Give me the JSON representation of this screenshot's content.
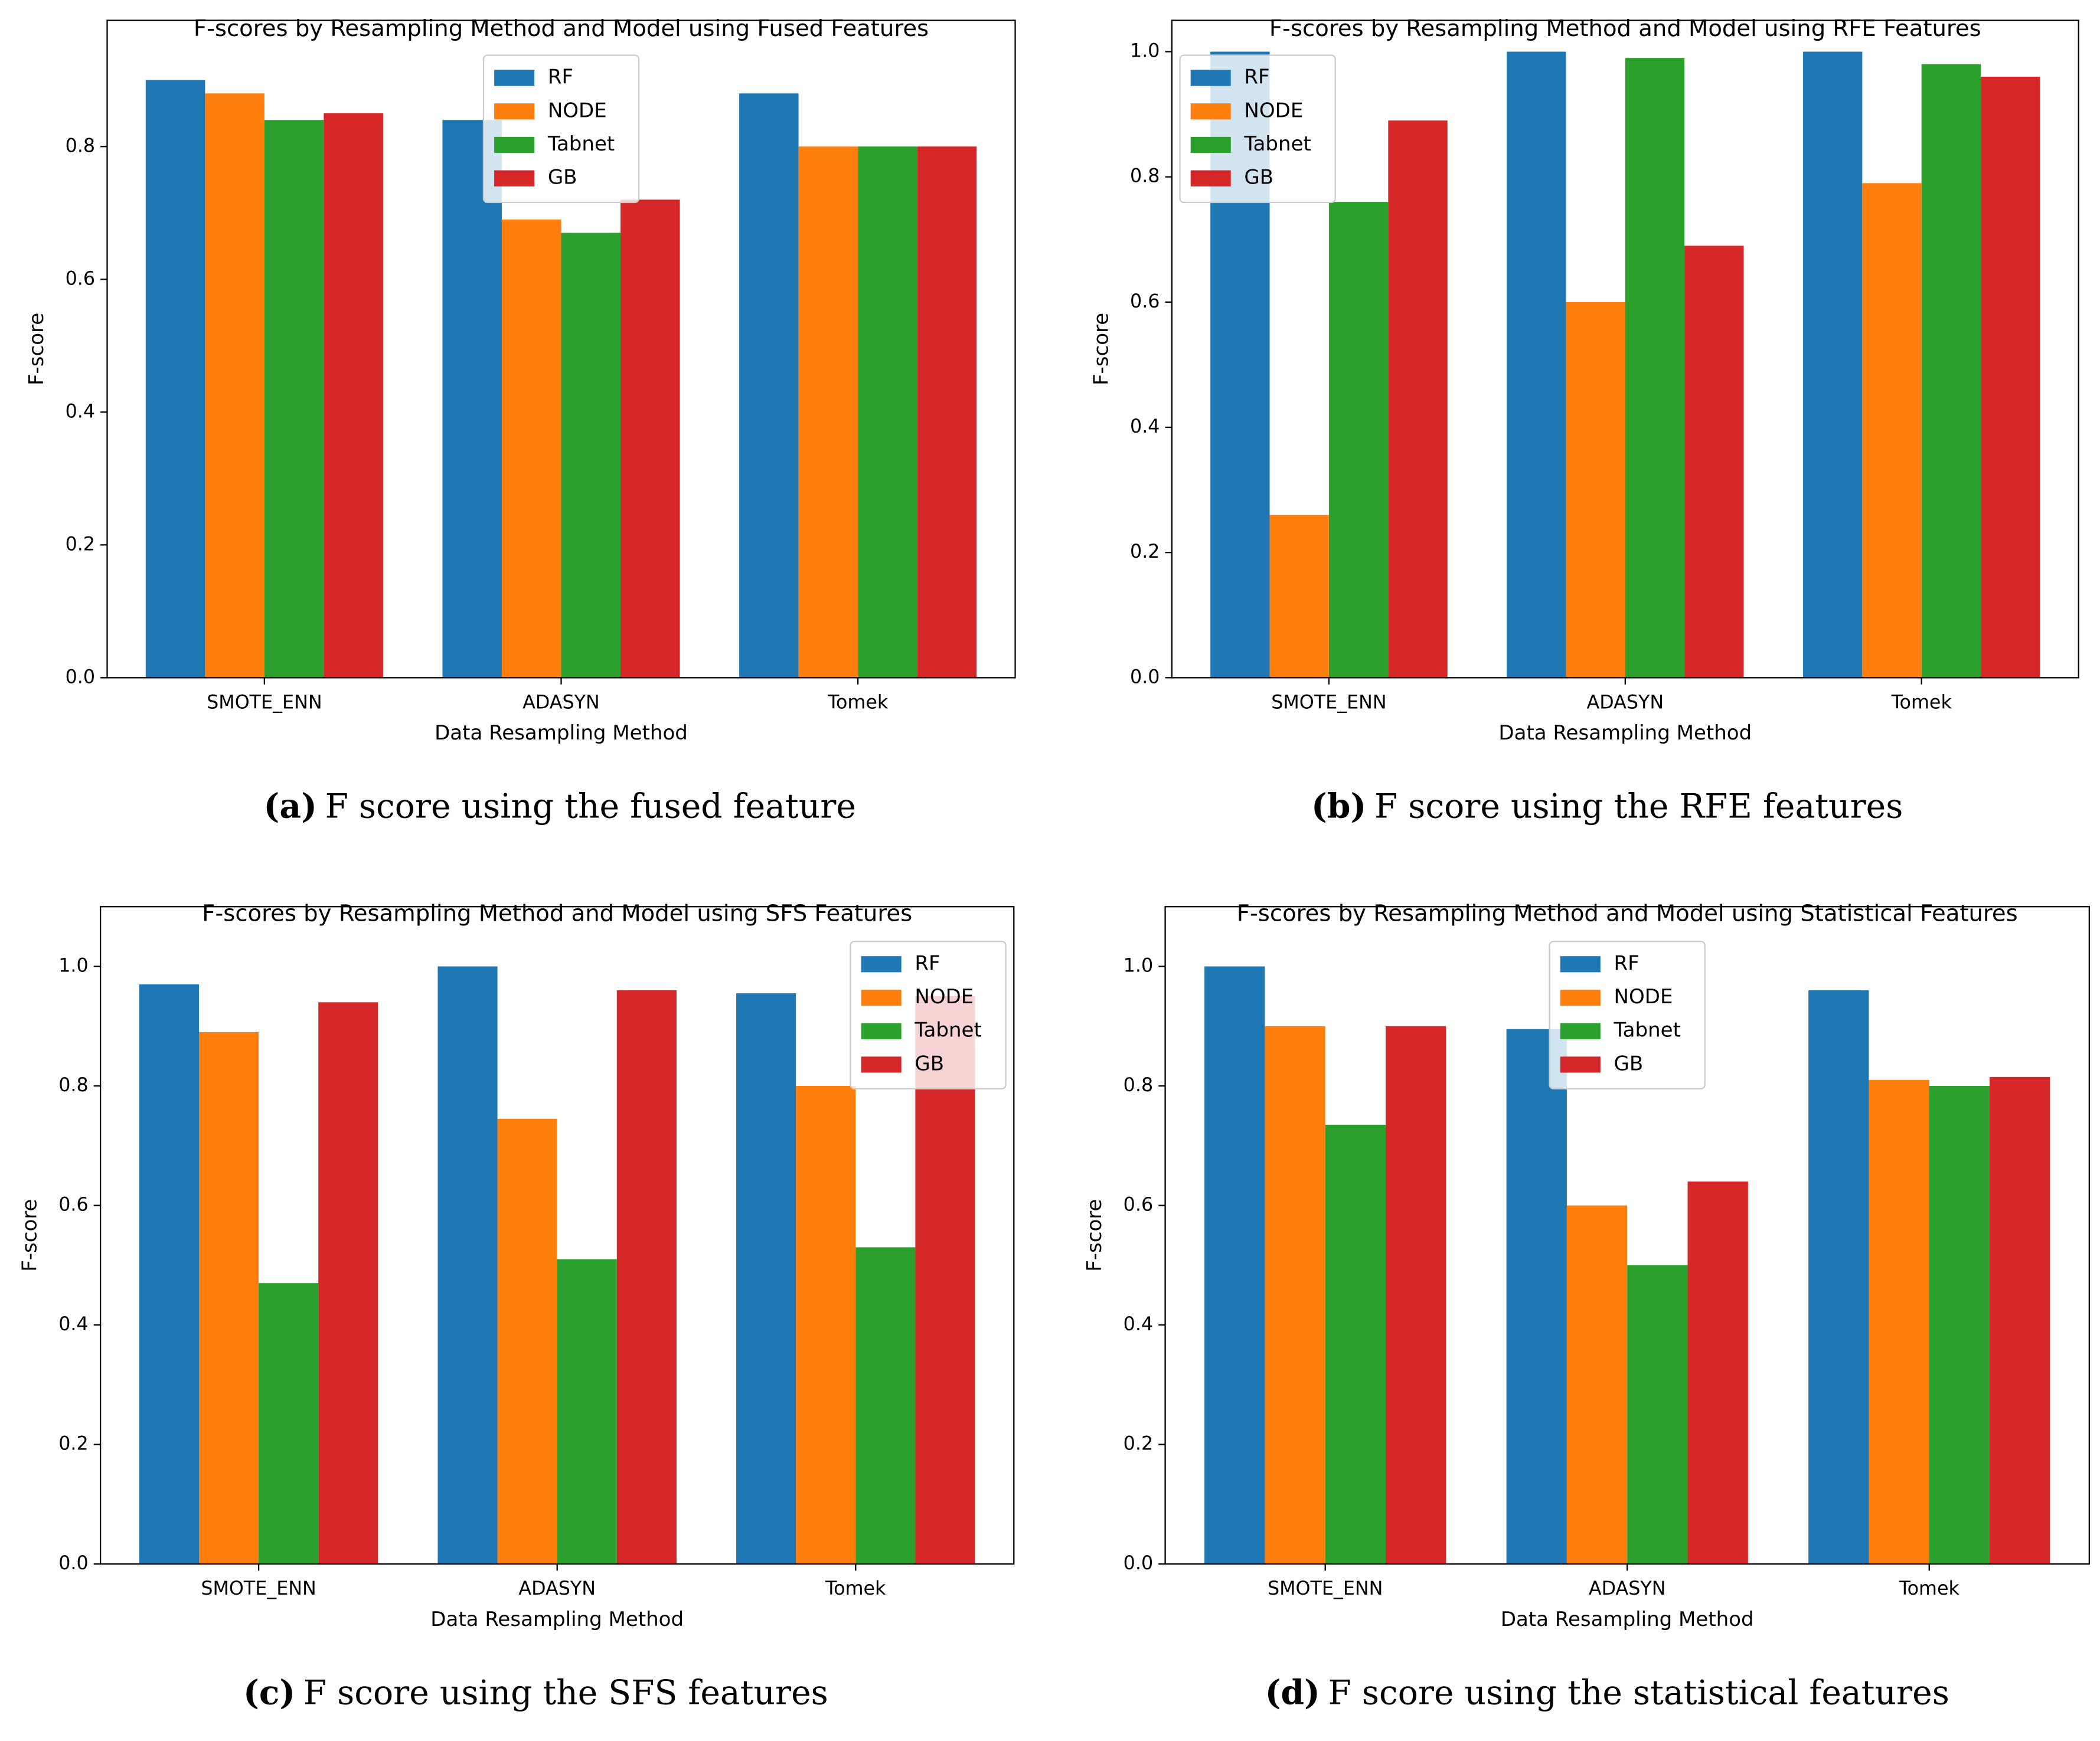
{
  "chart_data": [
    {
      "type": "bar",
      "title": "F-scores by Resampling Method and Model using Fused Features",
      "x_label": "Data Resampling Method",
      "y_label": "F-score",
      "caption_label": "(a)",
      "caption": "F score using the fused feature",
      "categories": [
        "SMOTE_ENN",
        "ADASYN",
        "Tomek"
      ],
      "series": [
        {
          "name": "RF",
          "color": "#1f77b4",
          "values": [
            0.9,
            0.84,
            0.88
          ]
        },
        {
          "name": "NODE",
          "color": "#ff7f0e",
          "values": [
            0.88,
            0.69,
            0.8
          ]
        },
        {
          "name": "Tabnet",
          "color": "#2ca02c",
          "values": [
            0.84,
            0.67,
            0.8
          ]
        },
        {
          "name": "GB",
          "color": "#d62728",
          "values": [
            0.85,
            0.72,
            0.8
          ]
        }
      ],
      "ylim": [
        0,
        0.99
      ],
      "yticks": [
        {
          "value": 0,
          "label": "0.0"
        },
        0.2,
        0.4,
        0.6,
        0.8
      ],
      "legend": "upper center"
    },
    {
      "type": "bar",
      "title": "F-scores by Resampling Method and Model using RFE Features",
      "x_label": "Data Resampling Method",
      "y_label": "F-score",
      "caption_label": "(b)",
      "caption": "F score using the RFE features",
      "categories": [
        "SMOTE_ENN",
        "ADASYN",
        "Tomek"
      ],
      "series": [
        {
          "name": "RF",
          "color": "#1f77b4",
          "values": [
            1.0,
            1.0,
            1.0
          ]
        },
        {
          "name": "NODE",
          "color": "#ff7f0e",
          "values": [
            0.26,
            0.6,
            0.79
          ]
        },
        {
          "name": "Tabnet",
          "color": "#2ca02c",
          "values": [
            0.76,
            0.99,
            0.98
          ]
        },
        {
          "name": "GB",
          "color": "#d62728",
          "values": [
            0.89,
            0.69,
            0.96
          ]
        }
      ],
      "ylim": [
        0,
        1.05
      ],
      "yticks": [
        {
          "value": 0,
          "label": "0.0"
        },
        0.2,
        0.4,
        0.6,
        0.8,
        {
          "value": 1,
          "label": "1.0"
        }
      ],
      "legend": "upper left"
    },
    {
      "type": "bar",
      "title": "F-scores by Resampling Method and Model using SFS Features",
      "x_label": "Data Resampling Method",
      "y_label": "F-score",
      "caption_label": "(c)",
      "caption": "F score using the SFS features",
      "categories": [
        "SMOTE_ENN",
        "ADASYN",
        "Tomek"
      ],
      "series": [
        {
          "name": "RF",
          "color": "#1f77b4",
          "values": [
            0.97,
            1.0,
            0.955
          ]
        },
        {
          "name": "NODE",
          "color": "#ff7f0e",
          "values": [
            0.89,
            0.745,
            0.8
          ]
        },
        {
          "name": "Tabnet",
          "color": "#2ca02c",
          "values": [
            0.47,
            0.51,
            0.53
          ]
        },
        {
          "name": "GB",
          "color": "#d62728",
          "values": [
            0.94,
            0.96,
            0.95
          ]
        }
      ],
      "ylim": [
        0,
        1.1
      ],
      "yticks": [
        {
          "value": 0,
          "label": "0.0"
        },
        0.2,
        0.4,
        0.6,
        0.8,
        {
          "value": 1,
          "label": "1.0"
        }
      ],
      "legend": "upper right"
    },
    {
      "type": "bar",
      "title": "F-scores by Resampling Method and Model using Statistical Features",
      "x_label": "Data Resampling Method",
      "y_label": "F-score",
      "caption_label": "(d)",
      "caption": "F score using the statistical features",
      "categories": [
        "SMOTE_ENN",
        "ADASYN",
        "Tomek"
      ],
      "series": [
        {
          "name": "RF",
          "color": "#1f77b4",
          "values": [
            1.0,
            0.895,
            0.96
          ]
        },
        {
          "name": "NODE",
          "color": "#ff7f0e",
          "values": [
            0.9,
            0.6,
            0.81
          ]
        },
        {
          "name": "Tabnet",
          "color": "#2ca02c",
          "values": [
            0.735,
            0.5,
            0.8
          ]
        },
        {
          "name": "GB",
          "color": "#d62728",
          "values": [
            0.9,
            0.64,
            0.815
          ]
        }
      ],
      "ylim": [
        0,
        1.1
      ],
      "yticks": [
        {
          "value": 0,
          "label": "0.0"
        },
        0.2,
        0.4,
        0.6,
        0.8,
        {
          "value": 1,
          "label": "1.0"
        }
      ],
      "legend": "upper center"
    }
  ]
}
